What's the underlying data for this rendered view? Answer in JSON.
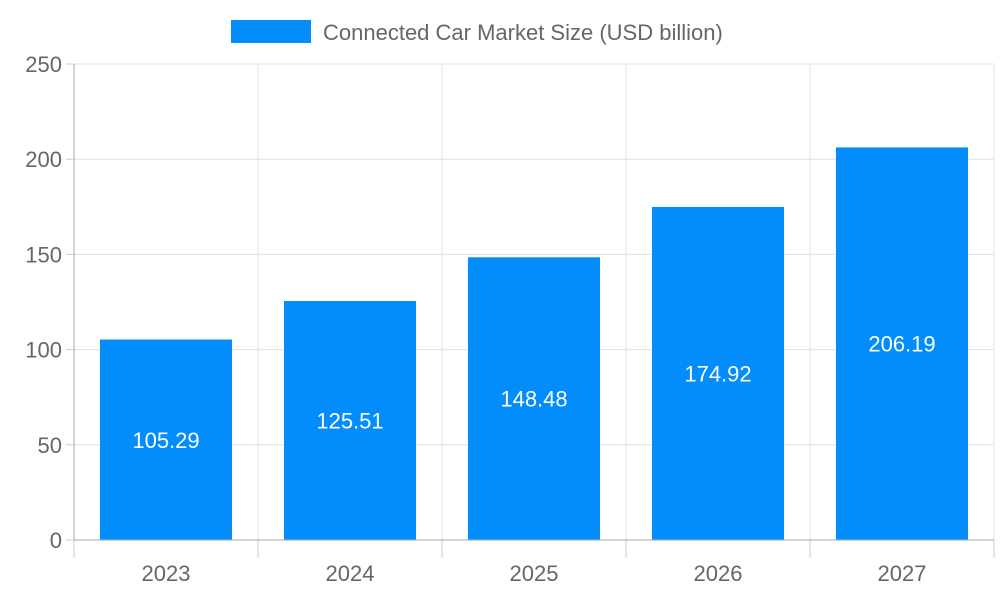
{
  "chart_data": {
    "type": "bar",
    "title": "",
    "xlabel": "",
    "ylabel": "",
    "categories": [
      "2023",
      "2024",
      "2025",
      "2026",
      "2027"
    ],
    "series": [
      {
        "name": "Connected Car Market Size (USD billion)",
        "values": [
          105.29,
          125.51,
          148.48,
          174.92,
          206.19
        ],
        "color": "#038cfc"
      }
    ],
    "ylim": [
      0,
      250
    ],
    "yticks": [
      0,
      50,
      100,
      150,
      200,
      250
    ],
    "grid": true,
    "legend_position": "top",
    "data_labels": true
  }
}
